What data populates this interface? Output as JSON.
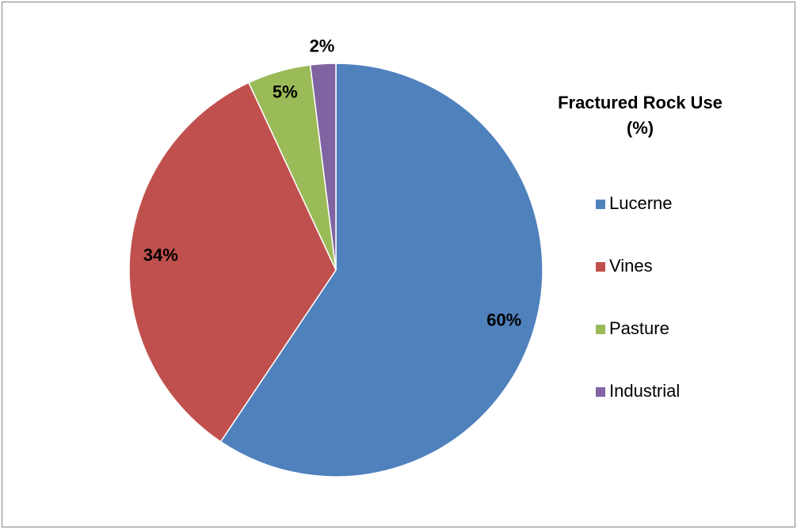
{
  "chart_data": {
    "type": "pie",
    "title": "Fractured Rock Use (%)",
    "categories": [
      "Lucerne",
      "Vines",
      "Pasture",
      "Industrial"
    ],
    "values": [
      60,
      34,
      5,
      2
    ],
    "colors": [
      "#4f81bd",
      "#c0504d",
      "#9bbb59",
      "#8064a2"
    ],
    "value_labels": [
      "60%",
      "34%",
      "5%",
      "2%"
    ],
    "legend": "right"
  }
}
